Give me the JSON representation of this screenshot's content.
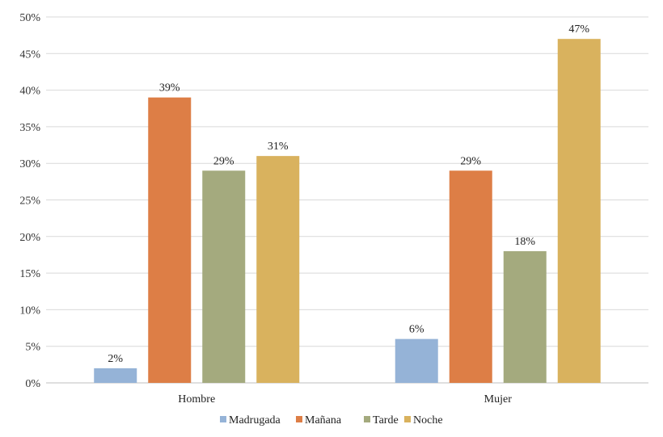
{
  "chart_data": {
    "type": "bar",
    "categories": [
      "Hombre",
      "Mujer"
    ],
    "series": [
      {
        "name": "Madrugada",
        "values": [
          2,
          6
        ],
        "labels": [
          "2%",
          "6%"
        ],
        "color": "#95b3d7"
      },
      {
        "name": "Mañana",
        "values": [
          39,
          29
        ],
        "labels": [
          "39%",
          "29%"
        ],
        "color": "#dd7e46"
      },
      {
        "name": "Tarde",
        "values": [
          29,
          18
        ],
        "labels": [
          "29%",
          "18%"
        ],
        "color": "#a4aa7e"
      },
      {
        "name": "Noche",
        "values": [
          31,
          47
        ],
        "labels": [
          "31%",
          "47%"
        ],
        "color": "#d9b25e"
      }
    ],
    "title": "",
    "xlabel": "",
    "ylabel": "",
    "ylim": [
      0,
      50
    ],
    "yticks": [
      0,
      5,
      10,
      15,
      20,
      25,
      30,
      35,
      40,
      45,
      50
    ],
    "ytick_labels": [
      "0%",
      "5%",
      "10%",
      "15%",
      "20%",
      "25%",
      "30%",
      "35%",
      "40%",
      "45%",
      "50%"
    ],
    "grid": true,
    "legend": "bottom"
  }
}
